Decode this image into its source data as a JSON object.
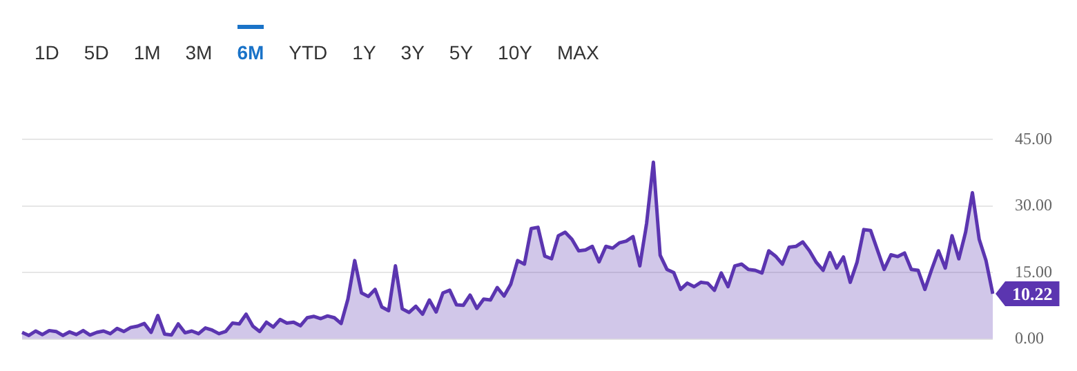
{
  "chart_data": {
    "type": "area",
    "annotations": [
      "1D",
      "5D",
      "1M",
      "3M",
      "6M",
      "YTD",
      "1Y",
      "3Y",
      "5Y",
      "10Y",
      "MAX"
    ],
    "categories": [
      null,
      null,
      null,
      null,
      null,
      null,
      null,
      null,
      null,
      null,
      null,
      null,
      null,
      null,
      null,
      null,
      null,
      null,
      null,
      null,
      null,
      null,
      null,
      null,
      null,
      null,
      null,
      null,
      null,
      null,
      null,
      null,
      null,
      null,
      null,
      null,
      null,
      null,
      null,
      null,
      null,
      null,
      null,
      null,
      null,
      null,
      null,
      null,
      null,
      null,
      null,
      null,
      null,
      null,
      null,
      null,
      null,
      null,
      null,
      null,
      null,
      null,
      null,
      null,
      null,
      null,
      null,
      null,
      null,
      null,
      null,
      null,
      null,
      null,
      null,
      null,
      null,
      null,
      null,
      null,
      null,
      null,
      null,
      null,
      null,
      null,
      null,
      null,
      null,
      null,
      null,
      null,
      null,
      null,
      null,
      null,
      null,
      null,
      null,
      null,
      null,
      null,
      null,
      null,
      null,
      null,
      null,
      null,
      null,
      null,
      null,
      null,
      null,
      null,
      null,
      null,
      null,
      null,
      null,
      null,
      null,
      null,
      null,
      null,
      null,
      null,
      null,
      null,
      null,
      null,
      null,
      null,
      null,
      null,
      null,
      null,
      null,
      null,
      null,
      null,
      null,
      null,
      null,
      null
    ],
    "series": [
      {
        "color": "#5b35b0",
        "values": [
          1.5,
          0.8,
          1.8,
          1.0,
          1.9,
          1.7,
          0.8,
          1.6,
          1.0,
          1.9,
          0.9,
          1.5,
          1.8,
          1.2,
          2.4,
          1.7,
          2.6,
          2.9,
          3.5,
          1.5,
          5.3,
          1.1,
          0.9,
          3.4,
          1.4,
          1.8,
          1.2,
          2.5,
          2.0,
          1.2,
          1.7,
          3.6,
          3.4,
          5.6,
          2.9,
          1.7,
          3.8,
          2.7,
          4.4,
          3.6,
          3.8,
          3.0,
          4.8,
          5.1,
          4.6,
          5.2,
          4.8,
          3.5,
          9.0,
          17.7,
          10.4,
          9.6,
          11.2,
          7.2,
          6.4,
          16.5,
          6.8,
          6.0,
          7.4,
          5.6,
          8.8,
          6.1,
          10.4,
          11.0,
          7.7,
          7.6,
          9.9,
          6.9,
          9.0,
          8.8,
          11.6,
          9.7,
          12.4,
          17.7,
          16.9,
          24.9,
          25.2,
          18.7,
          18.1,
          23.3,
          24.1,
          22.5,
          19.9,
          20.1,
          20.9,
          17.4,
          20.9,
          20.5,
          21.7,
          22.1,
          23.1,
          16.5,
          26.1,
          39.9,
          18.9,
          15.7,
          15.0,
          11.2,
          12.6,
          11.8,
          12.8,
          12.6,
          11.0,
          14.9,
          11.8,
          16.5,
          16.9,
          15.7,
          15.5,
          14.9,
          19.9,
          18.7,
          16.9,
          20.7,
          20.9,
          21.9,
          19.9,
          17.3,
          15.5,
          19.5,
          16.0,
          18.5,
          12.8,
          17.3,
          24.7,
          24.5,
          20.1,
          15.7,
          19.0,
          18.6,
          19.4,
          15.7,
          15.5,
          11.2,
          15.7,
          19.9,
          16.0,
          23.3,
          18.1,
          24.1,
          33.0,
          22.5,
          17.7,
          10.22
        ],
        "value_labels": [
          null,
          null,
          null,
          null,
          null,
          null,
          null,
          null,
          null,
          null,
          null,
          null,
          null,
          null,
          null,
          null,
          null,
          null,
          null,
          null,
          null,
          null,
          null,
          null,
          null,
          null,
          null,
          null,
          null,
          null,
          null,
          null,
          null,
          null,
          null,
          null,
          null,
          null,
          null,
          null,
          null,
          null,
          null,
          null,
          null,
          null,
          null,
          null,
          null,
          null,
          null,
          null,
          null,
          null,
          null,
          null,
          null,
          null,
          null,
          null,
          null,
          null,
          null,
          null,
          null,
          null,
          null,
          null,
          null,
          null,
          null,
          null,
          null,
          null,
          null,
          null,
          null,
          null,
          null,
          null,
          null,
          null,
          null,
          null,
          null,
          null,
          null,
          null,
          null,
          null,
          null,
          null,
          null,
          null,
          null,
          null,
          null,
          null,
          null,
          null,
          null,
          null,
          null,
          null,
          null,
          null,
          null,
          null,
          null,
          null,
          null,
          null,
          null,
          null,
          null,
          null,
          null,
          null,
          null,
          null,
          null,
          null,
          null,
          null,
          null,
          null,
          null,
          null,
          null,
          null,
          null,
          null,
          null,
          null,
          null,
          null,
          null,
          null,
          null,
          null,
          null,
          null,
          null,
          "10.22"
        ]
      }
    ],
    "ylim": [
      0,
      45
    ],
    "yticks": [
      {
        "value": 0,
        "label": "0.00"
      },
      {
        "value": 15,
        "label": "15.00"
      },
      {
        "value": 30,
        "label": "30.00"
      },
      {
        "value": 45,
        "label": "45.00"
      }
    ],
    "grid": "y",
    "marker": "none",
    "line_style": "solid",
    "legend": false
  }
}
